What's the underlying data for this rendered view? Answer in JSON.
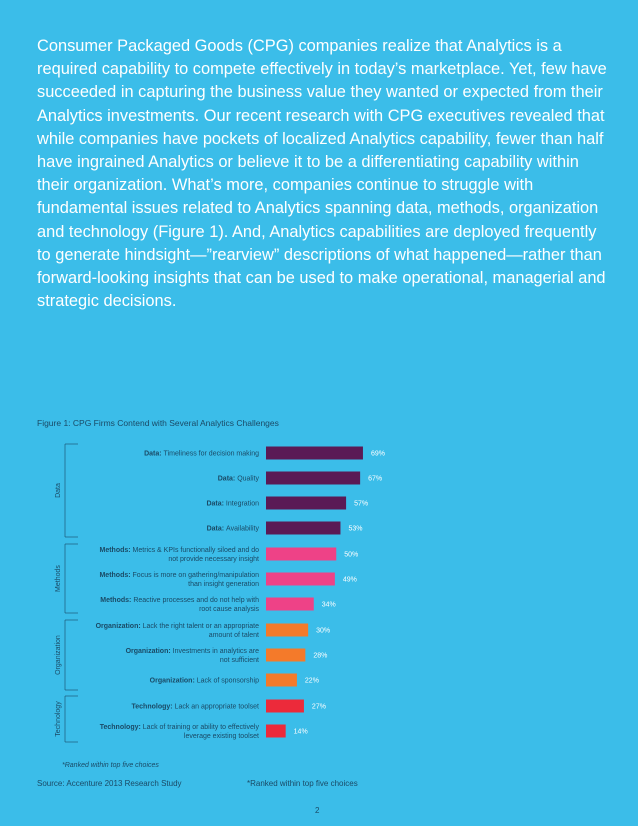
{
  "intro_text": "Consumer Packaged Goods (CPG) companies realize that Analytics is a required capability to compete effectively in today’s marketplace. Yet, few have succeeded in capturing the business value they wanted or expected from their Analytics investments. Our recent research with CPG executives revealed that while companies have pockets of localized Analytics capability, fewer than half have ingrained Analytics or believe it to be a differentiating capability within their organization. What’s more, companies continue to struggle with fundamental issues related to Analytics spanning data, methods, organization and technology (Figure 1). And, Analytics capabilities are deployed frequently to generate hindsight—”rearview” descriptions of what happened—rather than forward-looking insights that can be used to make operational, managerial and strategic decisions.",
  "figure_title": "Figure 1: CPG Firms Contend with Several Analytics Challenges",
  "chart_note": "*Ranked within top five choices",
  "source": "Source: Accenture 2013 Research Study",
  "footnote": "*Ranked within top five choices",
  "page_number": "2",
  "colors": {
    "background": "#3bbde9",
    "Data": "#5a1a55",
    "Methods": "#ee4287",
    "Organization": "#f47a2a",
    "Technology": "#ec2a3a"
  },
  "chart_data": {
    "type": "bar",
    "orientation": "horizontal",
    "title": "Figure 1: CPG Firms Contend with Several Analytics Challenges",
    "value_suffix": "%",
    "groups": [
      "Data",
      "Methods",
      "Organization",
      "Technology"
    ],
    "bars": [
      {
        "group": "Data",
        "prefix": "Data:",
        "lines": [
          "Timeliness for decision making"
        ],
        "value": 69
      },
      {
        "group": "Data",
        "prefix": "Data:",
        "lines": [
          "Quality"
        ],
        "value": 67
      },
      {
        "group": "Data",
        "prefix": "Data:",
        "lines": [
          "Integration"
        ],
        "value": 57
      },
      {
        "group": "Data",
        "prefix": "Data:",
        "lines": [
          "Availability"
        ],
        "value": 53
      },
      {
        "group": "Methods",
        "prefix": "Methods:",
        "lines": [
          "Metrics & KPIs functionally siloed and do",
          "not provide necessary insight"
        ],
        "value": 50
      },
      {
        "group": "Methods",
        "prefix": "Methods:",
        "lines": [
          "Focus is more on gathering/manipulation",
          "than insight generation"
        ],
        "value": 49
      },
      {
        "group": "Methods",
        "prefix": "Methods:",
        "lines": [
          "Reactive processes and do not help with",
          "root cause analysis"
        ],
        "value": 34
      },
      {
        "group": "Organization",
        "prefix": "Organization:",
        "lines": [
          "Lack the right talent or an appropriate",
          "amount of talent"
        ],
        "value": 30
      },
      {
        "group": "Organization",
        "prefix": "Organization:",
        "lines": [
          "Investments in analytics are",
          "not sufficient"
        ],
        "value": 28
      },
      {
        "group": "Organization",
        "prefix": "Organization:",
        "lines": [
          "Lack of sponsorship"
        ],
        "value": 22
      },
      {
        "group": "Technology",
        "prefix": "Technology:",
        "lines": [
          "Lack an appropriate toolset"
        ],
        "value": 27
      },
      {
        "group": "Technology",
        "prefix": "Technology:",
        "lines": [
          "Lack of training or ability to effectively",
          "leverage existing toolset"
        ],
        "value": 14
      }
    ]
  }
}
